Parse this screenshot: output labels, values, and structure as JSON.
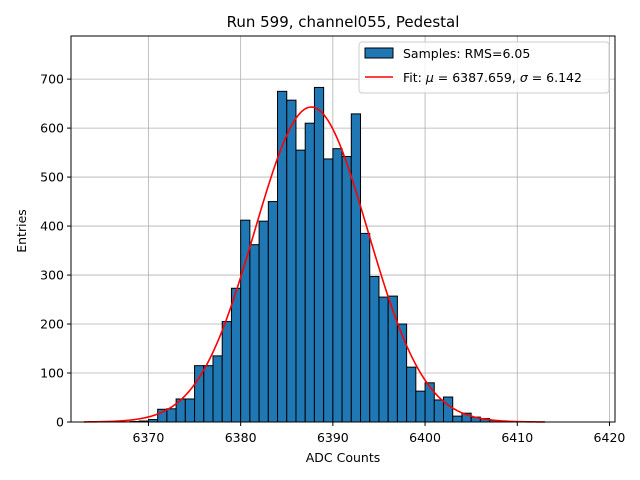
{
  "chart_data": {
    "type": "bar",
    "title": "Run 599, channel055, Pedestal",
    "xlabel": "ADC Counts",
    "ylabel": "Entries",
    "xlim": [
      6361.6,
      6420.6
    ],
    "ylim": [
      0,
      788
    ],
    "xticks": [
      6370,
      6380,
      6390,
      6400,
      6410,
      6420
    ],
    "yticks": [
      0,
      100,
      200,
      300,
      400,
      500,
      600,
      700
    ],
    "grid": true,
    "legend_position": "top-right",
    "colors": {
      "bars": "#1f77b4",
      "bar_edge": "#000000",
      "fit": "#ff0000",
      "grid": "#b0b0b0"
    },
    "histogram": {
      "name": "Samples: RMS=6.05",
      "bin_width": 1,
      "bin_left_edges": [
        6363,
        6364,
        6365,
        6366,
        6367,
        6368,
        6369,
        6370,
        6371,
        6372,
        6373,
        6374,
        6375,
        6376,
        6377,
        6378,
        6379,
        6380,
        6381,
        6382,
        6383,
        6384,
        6385,
        6386,
        6387,
        6388,
        6389,
        6390,
        6391,
        6392,
        6393,
        6394,
        6395,
        6396,
        6397,
        6398,
        6399,
        6400,
        6401,
        6402,
        6403,
        6404,
        6405,
        6406,
        6407,
        6408,
        6409,
        6410,
        6411,
        6412
      ],
      "counts": [
        0,
        0,
        0,
        0,
        0,
        1,
        2,
        5,
        26,
        27,
        47,
        47,
        115,
        115,
        135,
        205,
        273,
        412,
        362,
        410,
        450,
        675,
        657,
        555,
        610,
        683,
        537,
        558,
        542,
        629,
        385,
        297,
        255,
        257,
        200,
        112,
        63,
        80,
        45,
        51,
        12,
        18,
        10,
        7,
        3,
        1,
        0,
        0,
        0,
        0
      ]
    },
    "fit": {
      "name": "Fit: μ = 6387.659, σ = 6.142",
      "label_parts": [
        "Fit: ",
        "μ",
        " = 6387.659, ",
        "σ",
        " = 6.142"
      ],
      "type": "gaussian",
      "mu": 6387.659,
      "sigma": 6.142,
      "amplitude": 643,
      "x_range": [
        6363,
        6413
      ]
    }
  }
}
